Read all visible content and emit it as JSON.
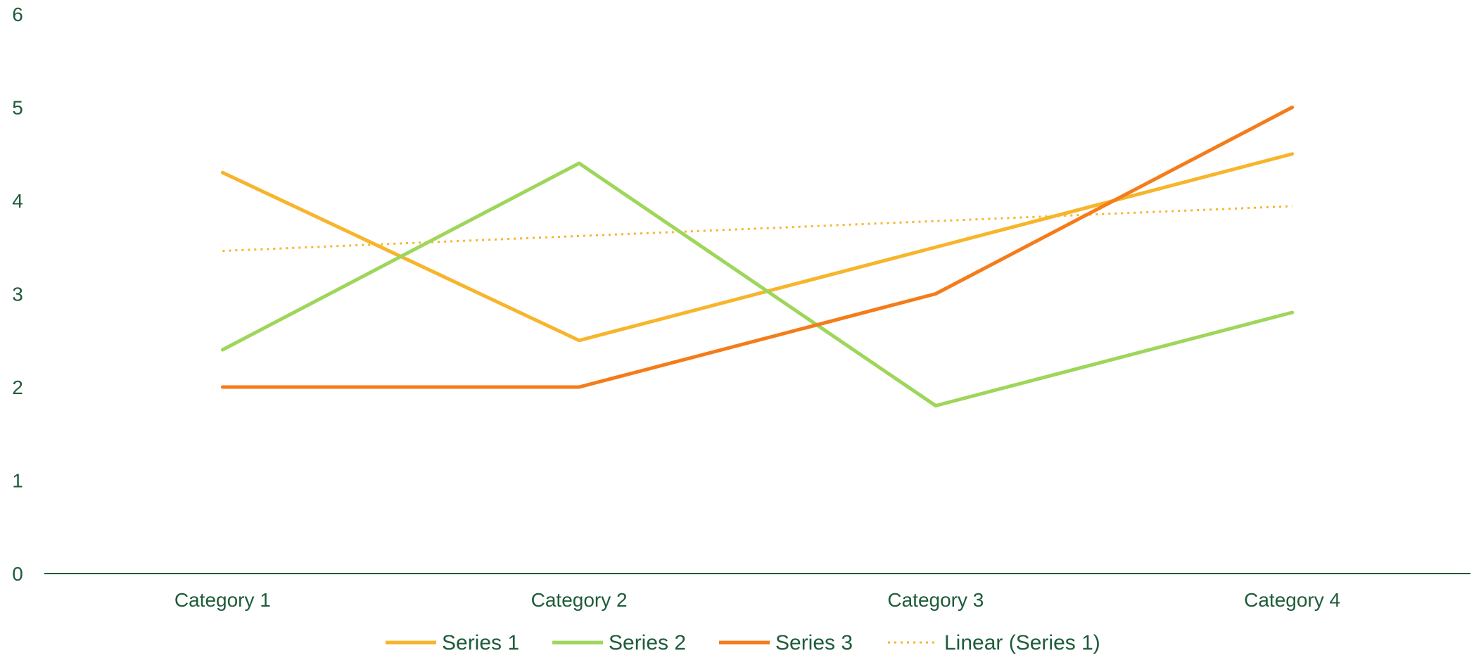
{
  "chart_data": {
    "type": "line",
    "categories": [
      "Category 1",
      "Category 2",
      "Category 3",
      "Category 4"
    ],
    "series": [
      {
        "name": "Series 1",
        "values": [
          4.3,
          2.5,
          3.5,
          4.5
        ],
        "color": "#F7B52C"
      },
      {
        "name": "Series 2",
        "values": [
          2.4,
          4.4,
          1.8,
          2.8
        ],
        "color": "#9ED65A"
      },
      {
        "name": "Series 3",
        "values": [
          2,
          2,
          3,
          5
        ],
        "color": "#F47C1A"
      }
    ],
    "trendline": {
      "name": "Linear (Series 1)",
      "of_series": "Series 1",
      "type": "linear",
      "style": "dotted",
      "color": "#F7B52C"
    },
    "yticks": [
      "0",
      "1",
      "2",
      "3",
      "4",
      "5",
      "6"
    ],
    "ylim": [
      0,
      6
    ],
    "grid": false,
    "legend_position": "bottom",
    "axis_color": "#1e5c3a",
    "text_color": "#1e5c3a"
  }
}
